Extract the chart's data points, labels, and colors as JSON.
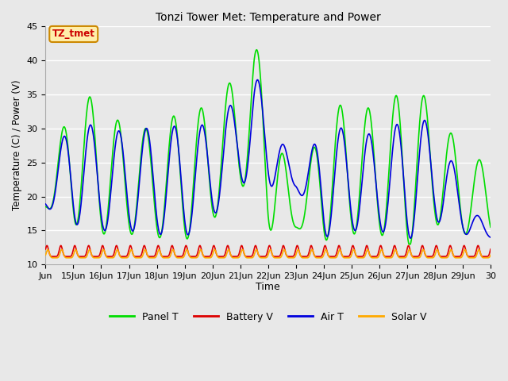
{
  "title": "Tonzi Tower Met: Temperature and Power",
  "xlabel": "Time",
  "ylabel": "Temperature (C) / Power (V)",
  "ylim": [
    10,
    45
  ],
  "xlim": [
    0,
    16
  ],
  "background_color": "#e8e8e8",
  "grid_color": "white",
  "annotation_text": "TZ_tmet",
  "annotation_bg": "#ffeeaa",
  "annotation_border": "#cc8800",
  "tick_labels": [
    "Jun",
    "15Jun",
    "16Jun",
    "17Jun",
    "18Jun",
    "19Jun",
    "20Jun",
    "21Jun",
    "22Jun",
    "23Jun",
    "24Jun",
    "25Jun",
    "26Jun",
    "27Jun",
    "28Jun",
    "29Jun",
    "30"
  ],
  "legend_entries": [
    "Panel T",
    "Battery V",
    "Air T",
    "Solar V"
  ],
  "legend_colors": [
    "#00dd00",
    "#dd0000",
    "#0000dd",
    "#ffaa00"
  ],
  "panel_t_color": "#00dd00",
  "battery_v_color": "#dd0000",
  "air_t_color": "#0000dd",
  "solar_v_color": "#ffaa00",
  "line_width": 1.2
}
